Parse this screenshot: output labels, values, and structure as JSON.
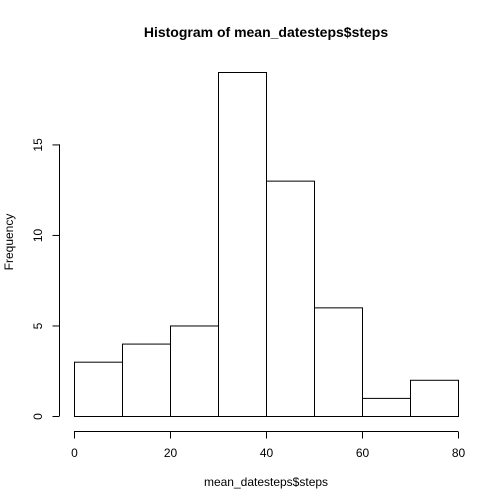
{
  "chart_data": {
    "type": "bar",
    "title": "Histogram of mean_datesteps$steps",
    "xlabel": "mean_datesteps$steps",
    "ylabel": "Frequency",
    "bins": [
      {
        "from": 0,
        "to": 10,
        "count": 3
      },
      {
        "from": 10,
        "to": 20,
        "count": 4
      },
      {
        "from": 20,
        "to": 30,
        "count": 5
      },
      {
        "from": 30,
        "to": 40,
        "count": 19
      },
      {
        "from": 40,
        "to": 50,
        "count": 13
      },
      {
        "from": 50,
        "to": 60,
        "count": 6
      },
      {
        "from": 60,
        "to": 70,
        "count": 1
      },
      {
        "from": 70,
        "to": 80,
        "count": 2
      }
    ],
    "x_ticks": [
      0,
      20,
      40,
      60,
      80
    ],
    "y_ticks": [
      0,
      5,
      10,
      15
    ],
    "xlim": [
      0,
      80
    ],
    "ylim": [
      0,
      19
    ],
    "grid": false
  }
}
